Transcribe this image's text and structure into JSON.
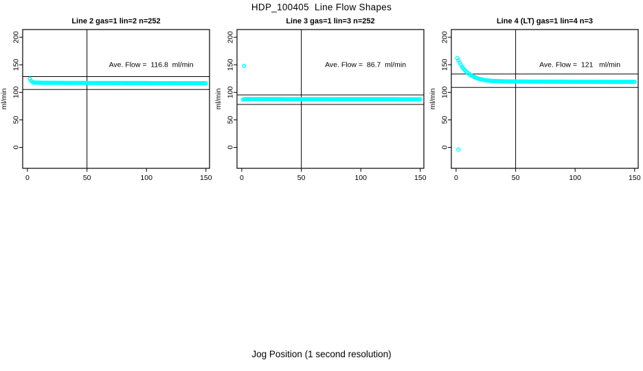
{
  "figure": {
    "title": "HDP_100405  Line Flow Shapes",
    "xlabel": "Jog Position (1 second resolution)",
    "background": "#FFFFFF",
    "point_color": "#00FFFF"
  },
  "chart_data": [
    {
      "type": "scatter",
      "title": "Line 2 gas=1 lin=2 n=252",
      "annotation": "Ave. Flow =  116.8  ml/min",
      "annotation_at": [
        104,
        146
      ],
      "ave_flow_ml_min": 116.8,
      "ylabel": "ml/min",
      "xlim": [
        -4,
        153
      ],
      "ylim": [
        -38,
        214
      ],
      "xticks": [
        0,
        50,
        100,
        150
      ],
      "yticks": [
        0,
        50,
        100,
        150,
        200
      ],
      "hlines": [
        128.5,
        105.1
      ],
      "vline": 50,
      "marker_color": "#00FFFF",
      "x_step": 1,
      "anchors": [
        [
          2,
          124.5
        ],
        [
          3,
          121.0
        ],
        [
          4,
          119.0
        ],
        [
          5,
          118.0
        ],
        [
          7,
          117.6
        ],
        [
          10,
          117.4
        ],
        [
          20,
          117.2
        ],
        [
          50,
          117.0
        ],
        [
          80,
          116.9
        ],
        [
          110,
          116.7
        ],
        [
          150,
          116.5
        ]
      ],
      "outliers": []
    },
    {
      "type": "scatter",
      "title": "Line 3 gas=1 lin=3 n=252",
      "annotation": "Ave. Flow =  86.7  ml/min",
      "annotation_at": [
        104,
        146
      ],
      "ave_flow_ml_min": 86.7,
      "ylabel": "ml/min",
      "xlim": [
        -4,
        153
      ],
      "ylim": [
        -38,
        214
      ],
      "xticks": [
        0,
        50,
        100,
        150
      ],
      "yticks": [
        0,
        50,
        100,
        150,
        200
      ],
      "hlines": [
        95.4,
        78.0
      ],
      "vline": 50,
      "marker_color": "#00FFFF",
      "x_step": 1,
      "anchors": [
        [
          1,
          86.8
        ],
        [
          2,
          87.6
        ],
        [
          4,
          87.8
        ],
        [
          10,
          87.8
        ],
        [
          30,
          87.7
        ],
        [
          60,
          87.6
        ],
        [
          100,
          87.5
        ],
        [
          150,
          87.4
        ]
      ],
      "outliers": [
        [
          2,
          148
        ]
      ]
    },
    {
      "type": "scatter",
      "title": "Line 4 (LT) gas=1 lin=4 n=3",
      "annotation": "Ave. Flow =  121   ml/min",
      "annotation_at": [
        104,
        146
      ],
      "ave_flow_ml_min": 121,
      "ylabel": "ml/min",
      "xlim": [
        -4,
        153
      ],
      "ylim": [
        -38,
        214
      ],
      "xticks": [
        0,
        50,
        100,
        150
      ],
      "yticks": [
        0,
        50,
        100,
        150,
        200
      ],
      "hlines": [
        133.1,
        108.9
      ],
      "vline": 50,
      "marker_color": "#00FFFF",
      "x_step": 1,
      "anchors": [
        [
          1,
          162.0
        ],
        [
          2,
          158.0
        ],
        [
          3,
          154.0
        ],
        [
          4,
          150.0
        ],
        [
          5,
          146.5
        ],
        [
          6,
          143.5
        ],
        [
          7,
          141.0
        ],
        [
          8,
          138.7
        ],
        [
          9,
          136.6
        ],
        [
          10,
          134.8
        ],
        [
          12,
          131.6
        ],
        [
          14,
          129.0
        ],
        [
          16,
          127.0
        ],
        [
          18,
          125.3
        ],
        [
          20,
          124.0
        ],
        [
          25,
          121.8
        ],
        [
          30,
          120.7
        ],
        [
          40,
          119.9
        ],
        [
          50,
          119.6
        ],
        [
          70,
          119.4
        ],
        [
          100,
          119.2
        ],
        [
          125,
          119.1
        ],
        [
          150,
          119.0
        ]
      ],
      "outliers": [
        [
          2,
          -4
        ]
      ]
    }
  ]
}
